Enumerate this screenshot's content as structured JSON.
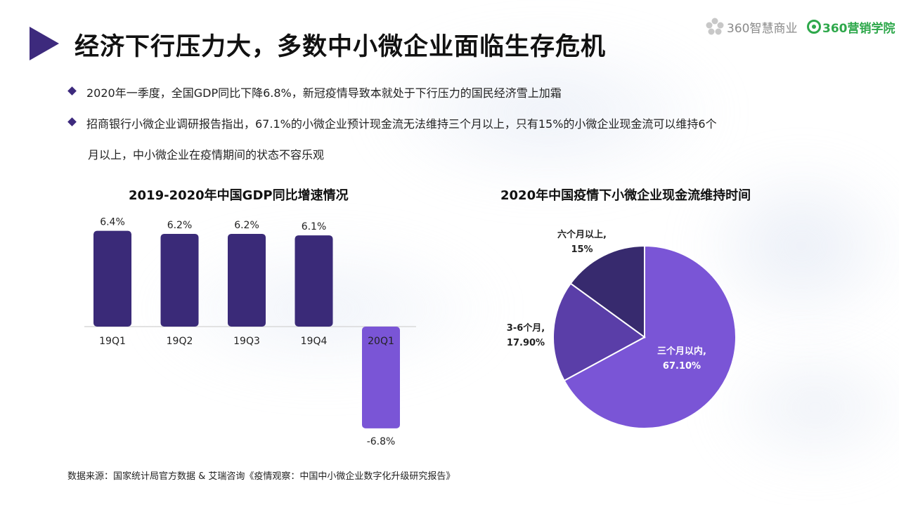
{
  "header": {
    "title": "经济下行压力大，多数中小微企业面临生存危机",
    "logo1_text": "360智慧商业",
    "logo2_text": "360营销学院"
  },
  "bullets": [
    "2020年一季度，全国GDP同比下降6.8%，新冠疫情导致本就处于下行压力的国民经济雪上加霜",
    "招商银行小微企业调研报告指出，67.1%的小微企业预计现金流无法维持三个月以上，只有15%的小微企业现金流可以维持6个",
    "月以上，中小微企业在疫情期间的状态不容乐观"
  ],
  "chart_data": [
    {
      "type": "bar",
      "title": "2019-2020年中国GDP同比增速情况",
      "categories": [
        "19Q1",
        "19Q2",
        "19Q3",
        "19Q4",
        "20Q1"
      ],
      "values": [
        6.4,
        6.2,
        6.2,
        6.1,
        -6.8
      ],
      "value_labels": [
        "6.4%",
        "6.2%",
        "6.2%",
        "6.1%",
        "-6.8%"
      ],
      "colors": [
        "#3a2a78",
        "#3a2a78",
        "#3a2a78",
        "#3a2a78",
        "#7a55d6"
      ]
    },
    {
      "type": "pie",
      "title": "2020年中国疫情下小微企业现金流维持时间",
      "slices": [
        {
          "label": "三个月以内,",
          "value": 67.1,
          "value_label": "67.10%",
          "color": "#7a55d6"
        },
        {
          "label": "3-6个月,",
          "value": 17.9,
          "value_label": "17.90%",
          "color": "#5a3ea8"
        },
        {
          "label": "六个月以上,",
          "value": 15.0,
          "value_label": "15%",
          "color": "#372a6e"
        }
      ]
    }
  ],
  "footer": {
    "source": "数据来源：国家统计局官方数据 & 艾瑞咨询《疫情观察：中国中小微企业数字化升级研究报告》"
  }
}
